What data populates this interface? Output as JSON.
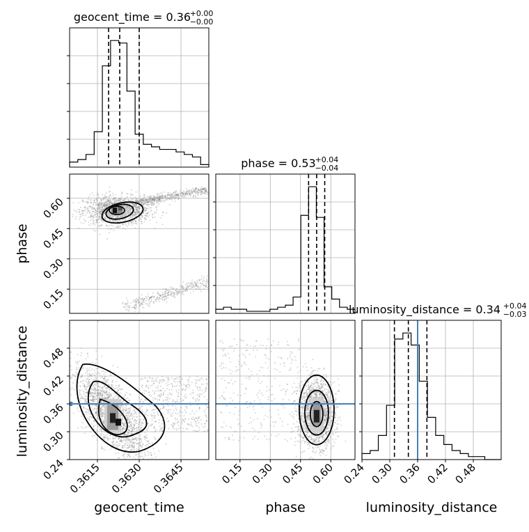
{
  "chart_data": {
    "type": "corner",
    "parameters": [
      "geocent_time",
      "phase",
      "luminosity_distance"
    ],
    "titles": {
      "geocent_time": {
        "label": "geocent_time = 0.36",
        "plus": "+0.00",
        "minus": "−0.00"
      },
      "phase": {
        "label": "phase = 0.53",
        "plus": "+0.04",
        "minus": "−0.04"
      },
      "luminosity_distance": {
        "label": "luminosity_distance = 0.34",
        "plus": "+0.04",
        "minus": "−0.03"
      }
    },
    "axes": {
      "geocent_time": {
        "range": [
          0.3605,
          0.3655
        ],
        "ticks": [
          "0.3615",
          "0.3630",
          "0.3645"
        ],
        "tick_values": [
          0.3615,
          0.363,
          0.3645
        ]
      },
      "phase": {
        "range": [
          0.03,
          0.72
        ],
        "ticks": [
          "0.15",
          "0.30",
          "0.45",
          "0.60"
        ],
        "tick_values": [
          0.15,
          0.3,
          0.45,
          0.6
        ]
      },
      "luminosity_distance": {
        "range": [
          0.24,
          0.54
        ],
        "ticks": [
          "0.24",
          "0.30",
          "0.36",
          "0.42",
          "0.48"
        ],
        "tick_values": [
          0.24,
          0.3,
          0.36,
          0.42,
          0.48
        ]
      }
    },
    "quantiles": {
      "geocent_time": [
        0.3619,
        0.3623,
        0.363
      ],
      "phase": [
        0.49,
        0.53,
        0.57
      ],
      "luminosity_distance": [
        0.31,
        0.34,
        0.38
      ]
    },
    "injection": {
      "luminosity_distance": 0.36
    },
    "hist1d": {
      "geocent_time": [
        2,
        3,
        5,
        14,
        40,
        50,
        49,
        30,
        13,
        9,
        8,
        7,
        7,
        6,
        5,
        4,
        1
      ],
      "phase": [
        2,
        3,
        2,
        2,
        1,
        1,
        1,
        2,
        3,
        4,
        8,
        48,
        62,
        47,
        13,
        7,
        3,
        2
      ],
      "luminosity_distance": [
        2,
        3,
        8,
        18,
        40,
        42,
        38,
        26,
        14,
        8,
        5,
        3,
        2,
        1,
        1,
        0,
        0
      ]
    },
    "grid": true,
    "colors": {
      "line": "#000000",
      "injection": "#4682b4",
      "scatter": "#8a8a8a"
    }
  }
}
